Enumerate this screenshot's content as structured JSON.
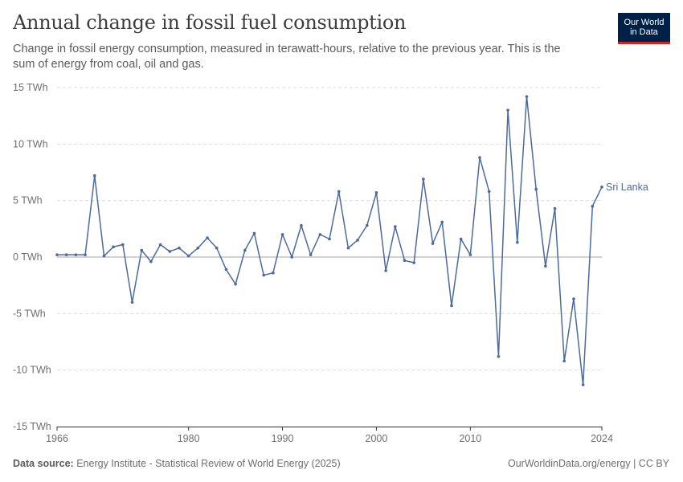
{
  "header": {
    "title": "Annual change in fossil fuel consumption",
    "subtitle": "Change in fossil energy consumption, measured in terawatt-hours, relative to the previous year. This is the sum of energy from coal, oil and gas.",
    "logo_line1": "Our World",
    "logo_line2": "in Data"
  },
  "footer": {
    "source_label": "Data source:",
    "source_text": "Energy Institute - Statistical Review of World Energy (2025)",
    "right_text": "OurWorldinData.org/energy | CC BY"
  },
  "colors": {
    "series": "#4c6a9c",
    "grid": "#dddddd",
    "zero": "#a3a3a3",
    "axis": "#333333"
  },
  "chart_data": {
    "type": "line",
    "title": "Annual change in fossil fuel consumption",
    "ylim": [
      -15,
      15
    ],
    "xlim": [
      1966,
      2024
    ],
    "y_ticks": [
      -15,
      -10,
      -5,
      0,
      5,
      10,
      15
    ],
    "y_tick_labels": [
      "-15 TWh",
      "-10 TWh",
      "-5 TWh",
      "0 TWh",
      "5 TWh",
      "10 TWh",
      "15 TWh"
    ],
    "x_ticks": [
      1966,
      1980,
      1990,
      2000,
      2010,
      2024
    ],
    "x_tick_labels": [
      "1966",
      "1980",
      "1990",
      "2000",
      "2010",
      "2024"
    ],
    "grid": "horizontal dashed",
    "series": [
      {
        "name": "Sri Lanka",
        "x": [
          1966,
          1967,
          1968,
          1969,
          1970,
          1971,
          1972,
          1973,
          1974,
          1975,
          1976,
          1977,
          1978,
          1979,
          1980,
          1981,
          1982,
          1983,
          1984,
          1985,
          1986,
          1987,
          1988,
          1989,
          1990,
          1991,
          1992,
          1993,
          1994,
          1995,
          1996,
          1997,
          1998,
          1999,
          2000,
          2001,
          2002,
          2003,
          2004,
          2005,
          2006,
          2007,
          2008,
          2009,
          2010,
          2011,
          2012,
          2013,
          2014,
          2015,
          2016,
          2017,
          2018,
          2019,
          2020,
          2021,
          2022,
          2023,
          2024
        ],
        "values": [
          0.2,
          0.2,
          0.2,
          0.2,
          7.2,
          0.1,
          0.9,
          1.1,
          -4.0,
          0.6,
          -0.4,
          1.1,
          0.5,
          0.8,
          0.1,
          0.8,
          1.7,
          0.8,
          -1.1,
          -2.4,
          0.6,
          2.1,
          -1.6,
          -1.4,
          2.0,
          0.0,
          2.8,
          0.2,
          2.0,
          1.6,
          5.8,
          0.8,
          1.5,
          2.8,
          5.7,
          -1.2,
          2.7,
          -0.3,
          -0.5,
          6.9,
          1.2,
          3.1,
          -4.3,
          1.6,
          0.2,
          8.8,
          5.8,
          -8.8,
          13.0,
          1.3,
          14.2,
          6.0,
          -0.8,
          4.3,
          -9.2,
          -3.7,
          -11.3,
          4.5,
          6.2
        ]
      }
    ]
  }
}
